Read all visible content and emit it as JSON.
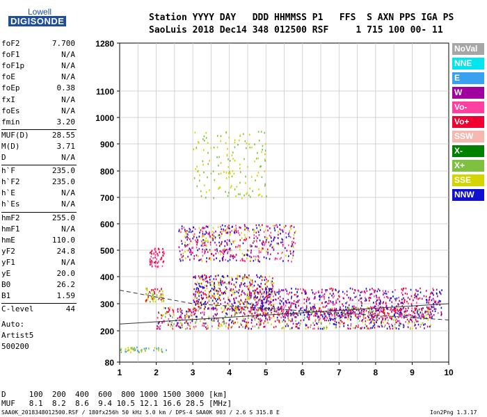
{
  "logo": {
    "line1": "Lowell",
    "line2": "DIGISONDE"
  },
  "header": {
    "line1": "Station YYYY DAY   DDD HHMMSS P1   FFS  S AXN PPS IGA PS",
    "line2": "SaoLuis 2018 Dec14 348 012500 RSF     1 715 100 00- 11"
  },
  "params": [
    {
      "k": "foF2",
      "v": "7.700"
    },
    {
      "k": "foF1",
      "v": "N/A"
    },
    {
      "k": "foF1p",
      "v": "N/A"
    },
    {
      "k": "foE",
      "v": "N/A"
    },
    {
      "k": "foEp",
      "v": "0.38"
    },
    {
      "k": "fxI",
      "v": "N/A"
    },
    {
      "k": "foEs",
      "v": "N/A"
    },
    {
      "k": "fmin",
      "v": "3.20"
    },
    {
      "k": "MUF(D)",
      "v": "28.55"
    },
    {
      "k": "M(D)",
      "v": "3.71"
    },
    {
      "k": "D",
      "v": "N/A"
    },
    {
      "k": "h`F",
      "v": "235.0"
    },
    {
      "k": "h`F2",
      "v": "235.0"
    },
    {
      "k": "h`E",
      "v": "N/A"
    },
    {
      "k": "h`Es",
      "v": "N/A"
    },
    {
      "k": "hmF2",
      "v": "255.0"
    },
    {
      "k": "hmF1",
      "v": "N/A"
    },
    {
      "k": "hmE",
      "v": "110.0"
    },
    {
      "k": "yF2",
      "v": "24.8"
    },
    {
      "k": "yF1",
      "v": "N/A"
    },
    {
      "k": "yE",
      "v": "20.0"
    },
    {
      "k": "B0",
      "v": "26.2"
    },
    {
      "k": "B1",
      "v": "1.59"
    },
    {
      "k": "C-level",
      "v": "44"
    }
  ],
  "notes": [
    "Auto:",
    "Artist5",
    "500200"
  ],
  "legend": [
    {
      "label": "NoVal",
      "color": "#a6a6a6"
    },
    {
      "label": "NNE",
      "color": "#00e5ee"
    },
    {
      "label": "E",
      "color": "#3aa0f0"
    },
    {
      "label": "W",
      "color": "#a000a0"
    },
    {
      "label": "Vo-",
      "color": "#ff40a0"
    },
    {
      "label": "Vo+",
      "color": "#f00030"
    },
    {
      "label": "SSW",
      "color": "#f4b8b0"
    },
    {
      "label": "X-",
      "color": "#008000"
    },
    {
      "label": "X+",
      "color": "#80c040"
    },
    {
      "label": "SSE",
      "color": "#d4d400"
    },
    {
      "label": "NNW",
      "color": "#1010d0"
    }
  ],
  "footer": {
    "d_row": "D     100  200  400  600  800 1000 1500 3000 [km]",
    "muf_row": "MUF   8.1  8.2  8.6  9.4 10.5 12.1 16.6 28.5 [MHz]",
    "file_line": "SAA0K_2018348012500.RSF / 180fx256h 50 kHz 5.0 km / DPS-4 SAA0K 903 / 2.6 S 315.8 E",
    "version": "Ion2Png 1.3.17"
  },
  "chart_data": {
    "type": "scatter",
    "title": "",
    "xlabel": "",
    "ylabel": "",
    "xlim": [
      1,
      10
    ],
    "ylim": [
      80,
      1280
    ],
    "x_ticks": [
      "1",
      "2",
      "3",
      "4",
      "5",
      "6",
      "7",
      "8",
      "9",
      "10"
    ],
    "y_ticks": [
      {
        "label": "80",
        "value": 80
      },
      {
        "label": "200",
        "value": 200
      },
      {
        "label": "300",
        "value": 300
      },
      {
        "label": "400",
        "value": 400
      },
      {
        "label": "500",
        "value": 500
      },
      {
        "label": "600",
        "value": 600
      },
      {
        "label": "700",
        "value": 700
      },
      {
        "label": "800",
        "value": 800
      },
      {
        "label": "900",
        "value": 900
      },
      {
        "label": "1000",
        "value": 1000
      },
      {
        "label": "1100",
        "value": 1100
      },
      {
        "label": "1280",
        "value": 1280
      }
    ],
    "scale": "height axis expands toward bottom",
    "clusters": [
      {
        "name": "F-trace low",
        "x": [
          2.0,
          9.5
        ],
        "y": [
          210,
          290
        ],
        "n": 900,
        "colors": [
          "#f00030",
          "#ff40a0",
          "#a000a0",
          "#1010d0",
          "#d4d400",
          "#80c040"
        ]
      },
      {
        "name": "F-trace band",
        "x": [
          4.5,
          9.8
        ],
        "y": [
          250,
          360
        ],
        "n": 700,
        "colors": [
          "#f00030",
          "#ff40a0",
          "#a000a0",
          "#1010d0"
        ]
      },
      {
        "name": "mid band",
        "x": [
          3.0,
          5.2
        ],
        "y": [
          280,
          410
        ],
        "n": 500,
        "colors": [
          "#1010d0",
          "#a000a0",
          "#f00030",
          "#d4d400"
        ]
      },
      {
        "name": "second hop",
        "x": [
          2.6,
          5.8
        ],
        "y": [
          460,
          600
        ],
        "n": 500,
        "colors": [
          "#f00030",
          "#ff40a0",
          "#a000a0",
          "#1010d0",
          "#d4d400"
        ]
      },
      {
        "name": "spread high",
        "x": [
          3.0,
          5.0
        ],
        "y": [
          700,
          950
        ],
        "n": 150,
        "colors": [
          "#d4d400",
          "#80c040"
        ]
      },
      {
        "name": "low patch",
        "x": [
          1.7,
          2.2
        ],
        "y": [
          310,
          360
        ],
        "n": 60,
        "colors": [
          "#d4d400",
          "#80c040",
          "#f00030"
        ]
      },
      {
        "name": "low patch 2",
        "x": [
          1.8,
          2.2
        ],
        "y": [
          440,
          510
        ],
        "n": 60,
        "colors": [
          "#f00030",
          "#ff40a0"
        ]
      },
      {
        "name": "E-region",
        "x": [
          1.0,
          2.3
        ],
        "y": [
          120,
          140
        ],
        "n": 50,
        "colors": [
          "#3aa0f0",
          "#80c040",
          "#d4d400"
        ]
      }
    ],
    "fit_lines": [
      {
        "style": "solid",
        "points": [
          [
            1.0,
            225
          ],
          [
            10.0,
            300
          ]
        ]
      },
      {
        "style": "dashed",
        "points": [
          [
            1.0,
            350
          ],
          [
            3.0,
            300
          ],
          [
            10.0,
            240
          ]
        ]
      }
    ]
  }
}
